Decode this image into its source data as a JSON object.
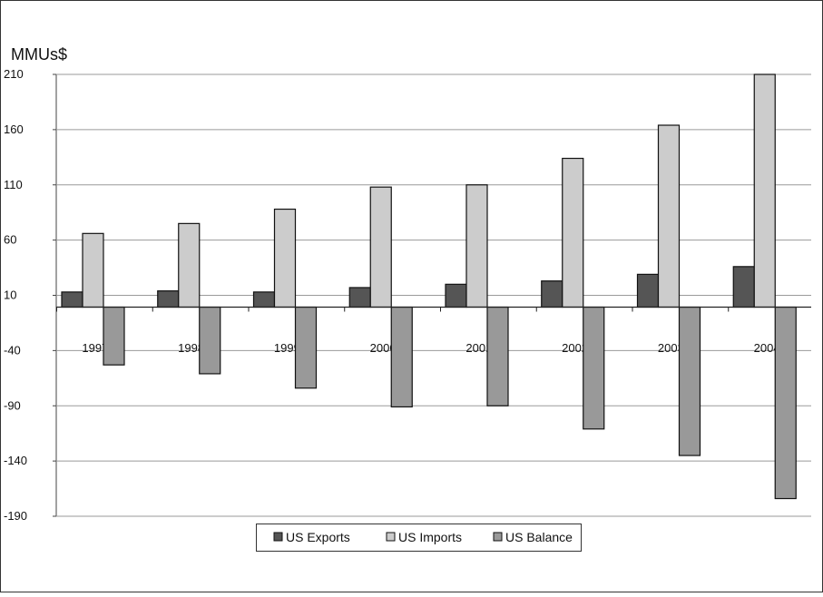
{
  "chart_data": {
    "type": "bar",
    "title": "",
    "ylabel": "MMUs$",
    "categories": [
      "1997",
      "1998",
      "1999",
      "2000",
      "2001",
      "2002",
      "2003",
      "2004"
    ],
    "series": [
      {
        "name": "US Exports",
        "values": [
          13,
          14,
          13,
          17,
          20,
          23,
          29,
          36
        ],
        "color": "#555555"
      },
      {
        "name": "US Imports",
        "values": [
          66,
          75,
          88,
          108,
          110,
          134,
          164,
          210
        ],
        "color": "#cccccc"
      },
      {
        "name": "US Balance",
        "values": [
          -53,
          -61,
          -74,
          -91,
          -90,
          -111,
          -135,
          -174
        ],
        "color": "#999999"
      }
    ],
    "yticks": [
      210,
      160,
      110,
      60,
      10,
      -40,
      -90,
      -140,
      -190
    ],
    "ylim": [
      -190,
      210
    ],
    "grid": true,
    "legend": "bottom-center",
    "colors": {
      "exports": "#555555",
      "imports": "#cccccc",
      "balance": "#999999"
    }
  }
}
